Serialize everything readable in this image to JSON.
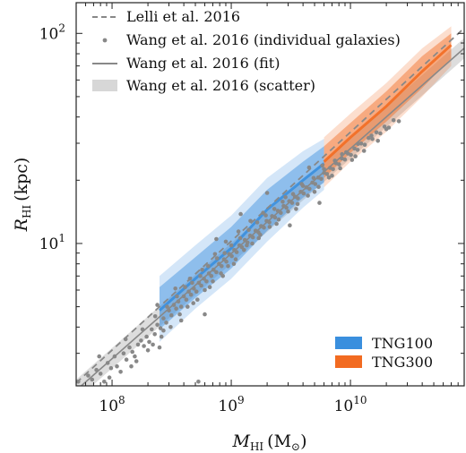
{
  "chart_data": {
    "type": "scatter",
    "x_scale": "log",
    "y_scale": "log",
    "xlim": [
      50000000,
      90000000000
    ],
    "ylim": [
      2.1,
      140
    ],
    "xlabel": "M_HI (M_⊙)",
    "xlabel_parts": {
      "symbol": "M",
      "sub": "HI",
      "unit_open": "(M",
      "unit_sub": "⊙",
      "unit_close": ")"
    },
    "ylabel": "R_HI (kpc)",
    "ylabel_parts": {
      "symbol": "R",
      "sub": "HI",
      "unit": "(kpc)"
    },
    "x_ticks": [
      {
        "value": 100000000,
        "base": "10",
        "exp": "8"
      },
      {
        "value": 1000000000,
        "base": "10",
        "exp": "9"
      },
      {
        "value": 10000000000,
        "base": "10",
        "exp": "10"
      }
    ],
    "y_ticks": [
      {
        "value": 10,
        "base": "10",
        "exp": "1"
      },
      {
        "value": 100,
        "base": "10",
        "exp": "2"
      }
    ],
    "grid": false,
    "legend_top": {
      "placement": "top-left",
      "entries": [
        {
          "label": "Lelli et al. 2016",
          "style": "dashed-line",
          "color": "#888888"
        },
        {
          "label": "Wang et al. 2016 (individual galaxies)",
          "style": "dot",
          "color": "#888888"
        },
        {
          "label": "Wang et al. 2016 (fit)",
          "style": "solid-line",
          "color": "#888888"
        },
        {
          "label": "Wang et al. 2016 (scatter)",
          "style": "patch",
          "color": "#d7d7d7"
        }
      ]
    },
    "legend_bottom": {
      "placement": "bottom-right",
      "entries": [
        {
          "label": "TNG100",
          "color": "#3a8fde"
        },
        {
          "label": "TNG300",
          "color": "#f26b21"
        }
      ]
    },
    "series": [
      {
        "name": "Lelli et al. 2016",
        "kind": "dashed-line",
        "color": "#888888",
        "points": [
          [
            50000000,
            2.17
          ],
          [
            90000000000,
            106
          ]
        ]
      },
      {
        "name": "Wang et al. 2016 (fit)",
        "kind": "line",
        "color": "#888888",
        "points": [
          [
            50000000,
            2.0
          ],
          [
            90000000000,
            85
          ]
        ]
      },
      {
        "name": "Wang et al. 2016 (scatter)",
        "kind": "band",
        "color": "#d7d7d7",
        "x": [
          50000000,
          90000000000
        ],
        "lower": [
          1.8,
          76
        ],
        "upper": [
          2.25,
          95
        ]
      },
      {
        "name": "TNG100",
        "kind": "band",
        "color": "#3a8fde",
        "x": [
          250000000,
          500000000,
          1000000000,
          2000000000,
          4000000000,
          6000000000
        ],
        "median": [
          4.8,
          6.8,
          9.5,
          14.5,
          20.0,
          24.0
        ],
        "lower": [
          3.9,
          5.5,
          7.6,
          11.5,
          16.5,
          19.5
        ],
        "upper": [
          6.2,
          8.6,
          12.0,
          18.0,
          24.5,
          29.0
        ],
        "outer_lower": [
          3.4,
          4.9,
          6.8,
          10.2,
          14.8,
          18.0
        ],
        "outer_upper": [
          7.0,
          9.8,
          13.6,
          20.5,
          27.5,
          31.5
        ]
      },
      {
        "name": "TNG300",
        "kind": "band",
        "color": "#f26b21",
        "x": [
          6000000000,
          10000000000,
          20000000000,
          40000000000,
          70000000000
        ],
        "median": [
          24.5,
          32.0,
          45.0,
          66.0,
          88.0
        ],
        "lower": [
          20.5,
          27.0,
          38.0,
          55.0,
          76.0
        ],
        "upper": [
          29.0,
          37.5,
          53.0,
          78.0,
          100.0
        ],
        "outer_lower": [
          18.5,
          24.5,
          34.0,
          50.0,
          70.0
        ],
        "outer_upper": [
          32.0,
          41.5,
          58.0,
          85.0,
          108.0
        ]
      },
      {
        "name": "Wang et al. 2016 (individual galaxies)",
        "kind": "scatter",
        "color": "#888888",
        "points": [
          [
            52000000,
            2.2
          ],
          [
            58000000,
            2.0
          ],
          [
            63000000,
            2.35
          ],
          [
            68000000,
            2.25
          ],
          [
            74000000,
            2.5
          ],
          [
            80000000,
            2.4
          ],
          [
            86000000,
            2.2
          ],
          [
            92000000,
            2.7
          ],
          [
            98000000,
            2.55
          ],
          [
            105000000,
            2.9
          ],
          [
            110000000,
            2.6
          ],
          [
            118000000,
            2.45
          ],
          [
            125000000,
            3.0
          ],
          [
            132000000,
            2.8
          ],
          [
            140000000,
            3.2
          ],
          [
            148000000,
            3.05
          ],
          [
            155000000,
            2.9
          ],
          [
            165000000,
            3.3
          ],
          [
            175000000,
            3.45
          ],
          [
            185000000,
            3.25
          ],
          [
            195000000,
            3.6
          ],
          [
            205000000,
            3.4
          ],
          [
            215000000,
            3.9
          ],
          [
            228000000,
            3.7
          ],
          [
            240000000,
            4.1
          ],
          [
            255000000,
            3.95
          ],
          [
            270000000,
            4.4
          ],
          [
            285000000,
            4.2
          ],
          [
            300000000,
            4.8
          ],
          [
            315000000,
            4.55
          ],
          [
            330000000,
            5.1
          ],
          [
            345000000,
            4.9
          ],
          [
            360000000,
            5.3
          ],
          [
            380000000,
            5.0
          ],
          [
            400000000,
            5.6
          ],
          [
            420000000,
            5.4
          ],
          [
            440000000,
            5.9
          ],
          [
            460000000,
            5.7
          ],
          [
            485000000,
            6.1
          ],
          [
            510000000,
            5.9
          ],
          [
            535000000,
            6.5
          ],
          [
            560000000,
            6.3
          ],
          [
            590000000,
            6.8
          ],
          [
            620000000,
            6.6
          ],
          [
            650000000,
            7.2
          ],
          [
            680000000,
            7.0
          ],
          [
            710000000,
            7.5
          ],
          [
            750000000,
            7.3
          ],
          [
            790000000,
            8.0
          ],
          [
            830000000,
            7.8
          ],
          [
            870000000,
            8.4
          ],
          [
            910000000,
            8.2
          ],
          [
            960000000,
            8.9
          ],
          [
            1010000000,
            8.7
          ],
          [
            1060000000,
            9.3
          ],
          [
            1110000000,
            9.1
          ],
          [
            1170000000,
            9.8
          ],
          [
            1230000000,
            9.6
          ],
          [
            1300000000,
            10.4
          ],
          [
            1370000000,
            10.1
          ],
          [
            1440000000,
            10.9
          ],
          [
            1520000000,
            10.7
          ],
          [
            1600000000,
            11.5
          ],
          [
            1690000000,
            11.3
          ],
          [
            1780000000,
            12.1
          ],
          [
            1880000000,
            11.9
          ],
          [
            1980000000,
            12.8
          ],
          [
            2090000000,
            12.6
          ],
          [
            2200000000,
            13.5
          ],
          [
            2330000000,
            13.3
          ],
          [
            2460000000,
            14.3
          ],
          [
            2600000000,
            14.0
          ],
          [
            2750000000,
            15.1
          ],
          [
            2900000000,
            14.8
          ],
          [
            3060000000,
            15.9
          ],
          [
            3240000000,
            15.6
          ],
          [
            3420000000,
            16.7
          ],
          [
            3620000000,
            16.4
          ],
          [
            3830000000,
            17.6
          ],
          [
            4050000000,
            17.3
          ],
          [
            4280000000,
            18.5
          ],
          [
            4530000000,
            18.2
          ],
          [
            4790000000,
            19.5
          ],
          [
            5070000000,
            19.2
          ],
          [
            5370000000,
            20.6
          ],
          [
            5680000000,
            20.3
          ],
          [
            6010000000,
            21.7
          ],
          [
            6370000000,
            21.4
          ],
          [
            6740000000,
            22.9
          ],
          [
            7140000000,
            22.6
          ],
          [
            7560000000,
            24.1
          ],
          [
            8010000000,
            23.8
          ],
          [
            8480000000,
            25.4
          ],
          [
            8990000000,
            25.1
          ],
          [
            9530000000,
            26.8
          ],
          [
            10100000000,
            26.4
          ],
          [
            10800000000,
            28.3
          ],
          [
            11500000000,
            27.9
          ],
          [
            12300000000,
            29.9
          ],
          [
            13200000000,
            29.5
          ],
          [
            14200000000,
            31.8
          ],
          [
            15300000000,
            31.4
          ],
          [
            16500000000,
            33.8
          ],
          [
            17800000000,
            33.4
          ],
          [
            19300000000,
            36.0
          ],
          [
            21000000000,
            35.6
          ],
          [
            23000000000,
            38.6
          ],
          [
            25500000000,
            38.2
          ],
          [
            78000000,
            2.9
          ],
          [
            95000000,
            2.3
          ],
          [
            130000000,
            3.5
          ],
          [
            160000000,
            2.75
          ],
          [
            200000000,
            3.1
          ],
          [
            230000000,
            4.5
          ],
          [
            260000000,
            3.6
          ],
          [
            290000000,
            5.0
          ],
          [
            310000000,
            4.0
          ],
          [
            350000000,
            5.6
          ],
          [
            370000000,
            4.6
          ],
          [
            410000000,
            6.2
          ],
          [
            430000000,
            5.0
          ],
          [
            470000000,
            6.5
          ],
          [
            520000000,
            5.4
          ],
          [
            550000000,
            7.0
          ],
          [
            600000000,
            6.0
          ],
          [
            640000000,
            7.8
          ],
          [
            700000000,
            6.6
          ],
          [
            760000000,
            8.5
          ],
          [
            820000000,
            7.2
          ],
          [
            880000000,
            9.0
          ],
          [
            940000000,
            7.8
          ],
          [
            1000000000,
            9.8
          ],
          [
            1090000000,
            8.4
          ],
          [
            1190000000,
            10.6
          ],
          [
            1280000000,
            9.3
          ],
          [
            1400000000,
            11.6
          ],
          [
            1500000000,
            10.0
          ],
          [
            1650000000,
            12.6
          ],
          [
            1750000000,
            11.0
          ],
          [
            1950000000,
            13.6
          ],
          [
            2100000000,
            12.0
          ],
          [
            2300000000,
            14.6
          ],
          [
            2500000000,
            13.0
          ],
          [
            2700000000,
            15.8
          ],
          [
            3000000000,
            14.2
          ],
          [
            3300000000,
            17.2
          ],
          [
            3600000000,
            15.4
          ],
          [
            4000000000,
            18.8
          ],
          [
            4400000000,
            16.9
          ],
          [
            4900000000,
            20.5
          ],
          [
            5400000000,
            18.6
          ],
          [
            6000000000,
            22.6
          ],
          [
            6600000000,
            20.6
          ],
          [
            7400000000,
            24.8
          ],
          [
            8200000000,
            22.8
          ],
          [
            9200000000,
            27.2
          ],
          [
            10300000000,
            25.0
          ],
          [
            11600000000,
            29.8
          ],
          [
            13000000000,
            27.6
          ],
          [
            15000000000,
            32.6
          ],
          [
            17000000000,
            30.8
          ],
          [
            20000000000,
            35.0
          ],
          [
            180000000,
            3.9
          ],
          [
            220000000,
            3.3
          ],
          [
            240000000,
            5.1
          ],
          [
            270000000,
            3.85
          ],
          [
            340000000,
            6.1
          ],
          [
            380000000,
            4.3
          ],
          [
            450000000,
            6.8
          ],
          [
            480000000,
            5.2
          ],
          [
            570000000,
            7.5
          ],
          [
            660000000,
            6.2
          ],
          [
            730000000,
            8.9
          ],
          [
            850000000,
            7.0
          ],
          [
            900000000,
            10.2
          ],
          [
            1050000000,
            8.0
          ],
          [
            1150000000,
            11.4
          ],
          [
            1350000000,
            9.8
          ],
          [
            1450000000,
            12.8
          ],
          [
            1700000000,
            10.6
          ],
          [
            1850000000,
            14.0
          ],
          [
            2400000000,
            12.4
          ],
          [
            2850000000,
            16.6
          ],
          [
            3500000000,
            14.6
          ],
          [
            3900000000,
            19.2
          ],
          [
            5000000000,
            17.6
          ],
          [
            5800000000,
            23.5
          ],
          [
            7000000000,
            21.0
          ],
          [
            8500000000,
            26.6
          ],
          [
            11000000000,
            26.0
          ],
          [
            145000000,
            2.6
          ],
          [
            250000000,
            3.2
          ],
          [
            600000000,
            4.6
          ],
          [
            750000000,
            10.5
          ],
          [
            1200000000,
            13.8
          ],
          [
            2000000000,
            17.4
          ],
          [
            3100000000,
            12.2
          ],
          [
            4500000000,
            23.0
          ],
          [
            5500000000,
            15.6
          ],
          [
            530000000,
            2.2
          ]
        ]
      }
    ]
  }
}
